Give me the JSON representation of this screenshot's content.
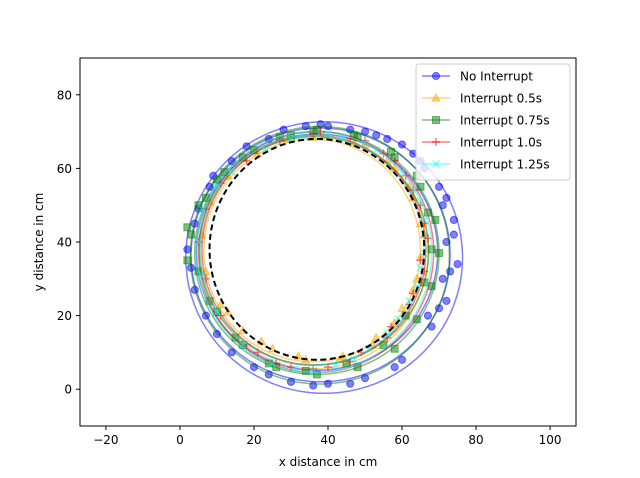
{
  "chart_data": {
    "type": "line",
    "title": "",
    "xlabel": "x distance in cm",
    "ylabel": "y distance in cm",
    "xlim": [
      -27,
      107
    ],
    "ylim": [
      -10,
      90
    ],
    "xticks": [
      -20,
      0,
      20,
      40,
      60,
      80,
      100
    ],
    "yticks": [
      0,
      20,
      40,
      60,
      80
    ],
    "grid": false,
    "legend_position": "top-right",
    "reference_path": {
      "style": "dashed",
      "color": "#000000",
      "center": [
        37,
        38
      ],
      "radius_x": 29,
      "radius_y": 30
    },
    "series": [
      {
        "name": "No Interrupt",
        "color": "#0000ff",
        "marker": "circle",
        "center": [
          38,
          36.5
        ],
        "radius_x": 35,
        "radius_y": 34.5,
        "loops": 3,
        "spread": 2.4,
        "points": [
          [
            38,
            72
          ],
          [
            50,
            70
          ],
          [
            60,
            66.5
          ],
          [
            66,
            60
          ],
          [
            71,
            50
          ],
          [
            72,
            40
          ],
          [
            71,
            30
          ],
          [
            67,
            20
          ],
          [
            60,
            8
          ],
          [
            50,
            3
          ],
          [
            40,
            1.5
          ],
          [
            30,
            2
          ],
          [
            20,
            6
          ],
          [
            10,
            15
          ],
          [
            4,
            27
          ],
          [
            2,
            38
          ],
          [
            5,
            49
          ],
          [
            9,
            58
          ],
          [
            18,
            66
          ],
          [
            28,
            70.5
          ],
          [
            40,
            71.5
          ],
          [
            53,
            69
          ],
          [
            63,
            64
          ],
          [
            70,
            55
          ],
          [
            74,
            46
          ],
          [
            75,
            34
          ],
          [
            72,
            24
          ],
          [
            68,
            17
          ],
          [
            58,
            6
          ],
          [
            46,
            1.5
          ],
          [
            36,
            1
          ],
          [
            24,
            4
          ],
          [
            14,
            10
          ],
          [
            7,
            20
          ],
          [
            3,
            33
          ],
          [
            4,
            45
          ],
          [
            8,
            55
          ],
          [
            14,
            62
          ],
          [
            24,
            68
          ],
          [
            34,
            71.5
          ],
          [
            46,
            70.5
          ],
          [
            56,
            68
          ],
          [
            65,
            62
          ],
          [
            72,
            52
          ],
          [
            74,
            42
          ],
          [
            73,
            32
          ],
          [
            70,
            22
          ]
        ]
      },
      {
        "name": "Interrupt 0.5s",
        "color": "#ffa500",
        "marker": "triangle",
        "center": [
          36,
          37.5
        ],
        "radius_x": 30,
        "radius_y": 31,
        "loops": 2,
        "spread": 1.5,
        "points": [
          [
            36,
            68.5
          ],
          [
            47,
            67
          ],
          [
            56,
            62
          ],
          [
            62,
            55
          ],
          [
            65,
            45
          ],
          [
            65,
            36
          ],
          [
            63,
            27
          ],
          [
            58,
            18
          ],
          [
            52,
            12
          ],
          [
            43,
            8
          ],
          [
            34,
            8
          ],
          [
            25,
            11
          ],
          [
            17,
            16
          ],
          [
            11,
            23
          ],
          [
            7,
            32
          ],
          [
            6,
            42
          ],
          [
            8,
            51
          ],
          [
            13,
            58
          ],
          [
            21,
            64
          ],
          [
            29,
            68
          ],
          [
            39,
            69
          ],
          [
            50,
            66.5
          ],
          [
            58,
            60
          ],
          [
            63,
            52
          ],
          [
            66,
            42
          ],
          [
            64,
            30
          ],
          [
            60,
            22
          ],
          [
            53,
            14
          ],
          [
            44,
            9
          ],
          [
            32,
            9
          ],
          [
            22,
            13
          ],
          [
            13,
            21
          ]
        ]
      },
      {
        "name": "Interrupt 0.75s",
        "color": "#008000",
        "marker": "square",
        "center": [
          37,
          37
        ],
        "radius_x": 33,
        "radius_y": 33,
        "loops": 3,
        "spread": 2.0,
        "points": [
          [
            37,
            70.5
          ],
          [
            48,
            68.5
          ],
          [
            58,
            63
          ],
          [
            65,
            55
          ],
          [
            69,
            46
          ],
          [
            70,
            37
          ],
          [
            68,
            28
          ],
          [
            64,
            19
          ],
          [
            58,
            11
          ],
          [
            48,
            6
          ],
          [
            37,
            4
          ],
          [
            26,
            6
          ],
          [
            17,
            12
          ],
          [
            10,
            21
          ],
          [
            5,
            32
          ],
          [
            3,
            42
          ],
          [
            5,
            50
          ],
          [
            10,
            57
          ],
          [
            17,
            63
          ],
          [
            27,
            68.5
          ],
          [
            36,
            70
          ],
          [
            47,
            69
          ],
          [
            57,
            64.5
          ],
          [
            64,
            58
          ],
          [
            67,
            48
          ],
          [
            68,
            38
          ],
          [
            66,
            29
          ],
          [
            61,
            20
          ],
          [
            55,
            12
          ],
          [
            45,
            7
          ],
          [
            34,
            5
          ],
          [
            24,
            7
          ],
          [
            15,
            14
          ],
          [
            8,
            24
          ],
          [
            2,
            35
          ],
          [
            2,
            44
          ],
          [
            7,
            52
          ],
          [
            12,
            59
          ],
          [
            20,
            65
          ],
          [
            30,
            69
          ]
        ]
      },
      {
        "name": "Interrupt 1.0s",
        "color": "#ff0000",
        "marker": "plus",
        "center": [
          36.5,
          37.5
        ],
        "radius_x": 31,
        "radius_y": 32,
        "loops": 2,
        "spread": 1.5,
        "points": [
          [
            36,
            69.5
          ],
          [
            46,
            68
          ],
          [
            55,
            64
          ],
          [
            61,
            58
          ],
          [
            65,
            50
          ],
          [
            67,
            41
          ],
          [
            66,
            32
          ],
          [
            62,
            23
          ],
          [
            56,
            14
          ],
          [
            46,
            7.5
          ],
          [
            36,
            5.5
          ],
          [
            26,
            7
          ],
          [
            18,
            12
          ],
          [
            11,
            20
          ],
          [
            7,
            30
          ],
          [
            5,
            40
          ],
          [
            7,
            49
          ],
          [
            11,
            56
          ],
          [
            18,
            62
          ],
          [
            27,
            67.5
          ],
          [
            38,
            70
          ],
          [
            50,
            67.5
          ],
          [
            58,
            62
          ],
          [
            63,
            54
          ],
          [
            66,
            45
          ],
          [
            65,
            35
          ],
          [
            63,
            26
          ],
          [
            57,
            17
          ],
          [
            49,
            10
          ],
          [
            40,
            6
          ],
          [
            30,
            6
          ],
          [
            21,
            10
          ]
        ]
      },
      {
        "name": "Interrupt 1.25s",
        "color": "#00ffff",
        "marker": "x",
        "center": [
          36,
          37.5
        ],
        "radius_x": 31,
        "radius_y": 32,
        "loops": 2,
        "spread": 1.5,
        "points": [
          [
            33,
            69
          ],
          [
            44,
            68.5
          ],
          [
            53,
            65
          ],
          [
            60,
            59
          ],
          [
            65,
            51
          ],
          [
            66,
            42
          ],
          [
            65,
            33
          ],
          [
            62,
            24
          ],
          [
            56,
            15
          ],
          [
            47,
            8
          ],
          [
            36,
            5
          ],
          [
            25,
            7
          ],
          [
            17,
            12
          ],
          [
            10,
            21
          ],
          [
            6,
            31
          ],
          [
            5,
            40
          ],
          [
            6,
            49
          ],
          [
            10,
            55
          ],
          [
            14,
            59
          ],
          [
            23,
            65
          ],
          [
            30,
            68
          ],
          [
            40,
            69.5
          ],
          [
            50,
            67
          ],
          [
            57,
            62
          ],
          [
            63,
            54
          ],
          [
            66,
            46
          ],
          [
            66,
            37
          ],
          [
            64,
            28
          ],
          [
            59,
            19
          ],
          [
            51,
            11
          ],
          [
            42,
            6.5
          ],
          [
            31,
            5.5
          ]
        ]
      }
    ]
  }
}
